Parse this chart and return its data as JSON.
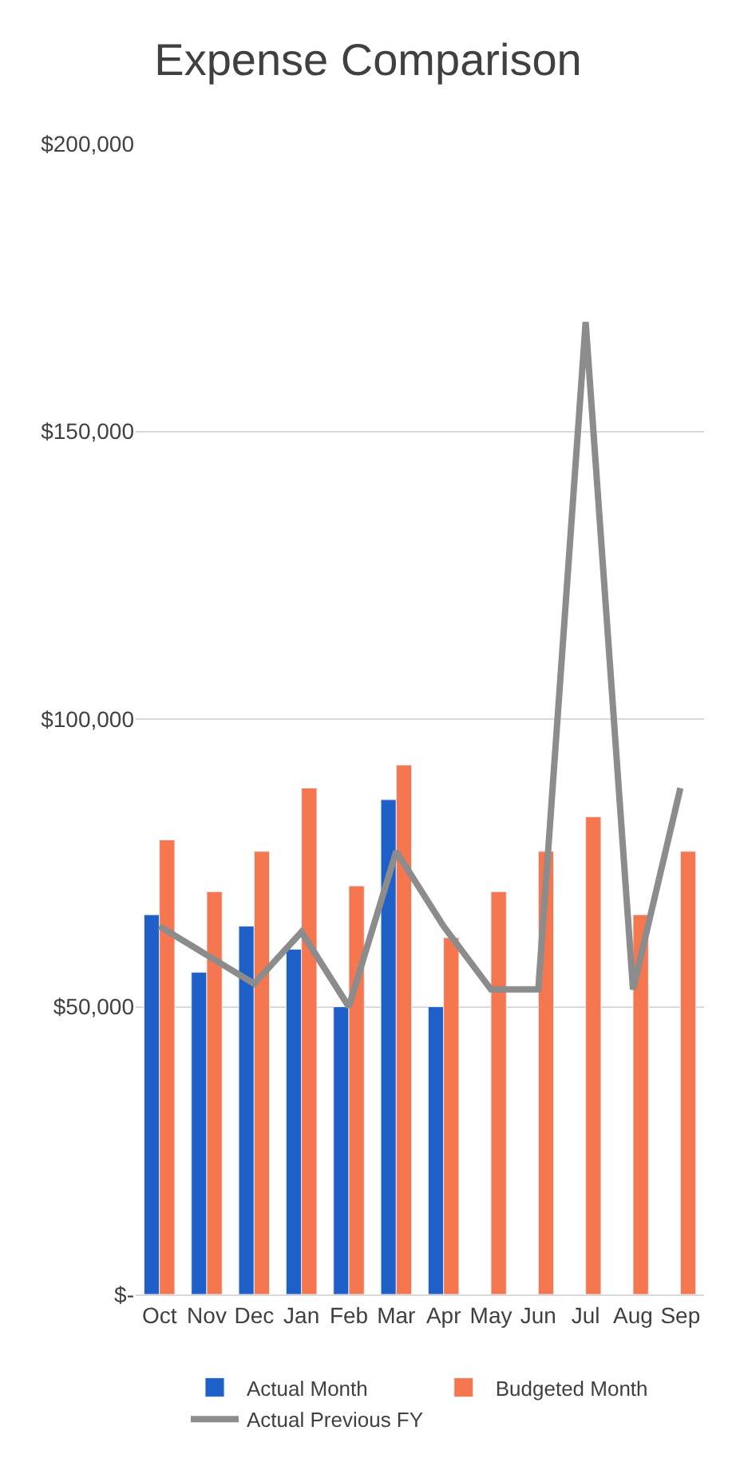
{
  "chart_data": {
    "type": "bar",
    "title": "Expense Comparison",
    "categories": [
      "Oct",
      "Nov",
      "Dec",
      "Jan",
      "Feb",
      "Mar",
      "Apr",
      "May",
      "Jun",
      "Jul",
      "Aug",
      "Sep"
    ],
    "series": [
      {
        "name": "Actual Month",
        "color": "#1f5fc8",
        "values": [
          66000,
          56000,
          64000,
          60000,
          50000,
          86000,
          50000,
          null,
          null,
          null,
          null,
          null
        ]
      },
      {
        "name": "Budgeted Month",
        "color": "#f4774f",
        "values": [
          79000,
          70000,
          77000,
          88000,
          71000,
          92000,
          62000,
          70000,
          77000,
          83000,
          66000,
          77000
        ]
      },
      {
        "name": "Actual Previous FY",
        "color": "#8c8c8c",
        "type": "line",
        "values": [
          64000,
          59000,
          54000,
          63000,
          50000,
          77000,
          64000,
          53000,
          53000,
          169000,
          53000,
          88000
        ]
      }
    ],
    "ylim": [
      0,
      200000
    ],
    "yticks": [
      {
        "value": 0,
        "label": "$-"
      },
      {
        "value": 50000,
        "label": "$50,000"
      },
      {
        "value": 100000,
        "label": "$100,000"
      },
      {
        "value": 150000,
        "label": "$150,000"
      },
      {
        "value": 200000,
        "label": "$200,000"
      }
    ],
    "grid": "y",
    "legend": "bottom",
    "marker": "none",
    "line_style": "solid"
  }
}
